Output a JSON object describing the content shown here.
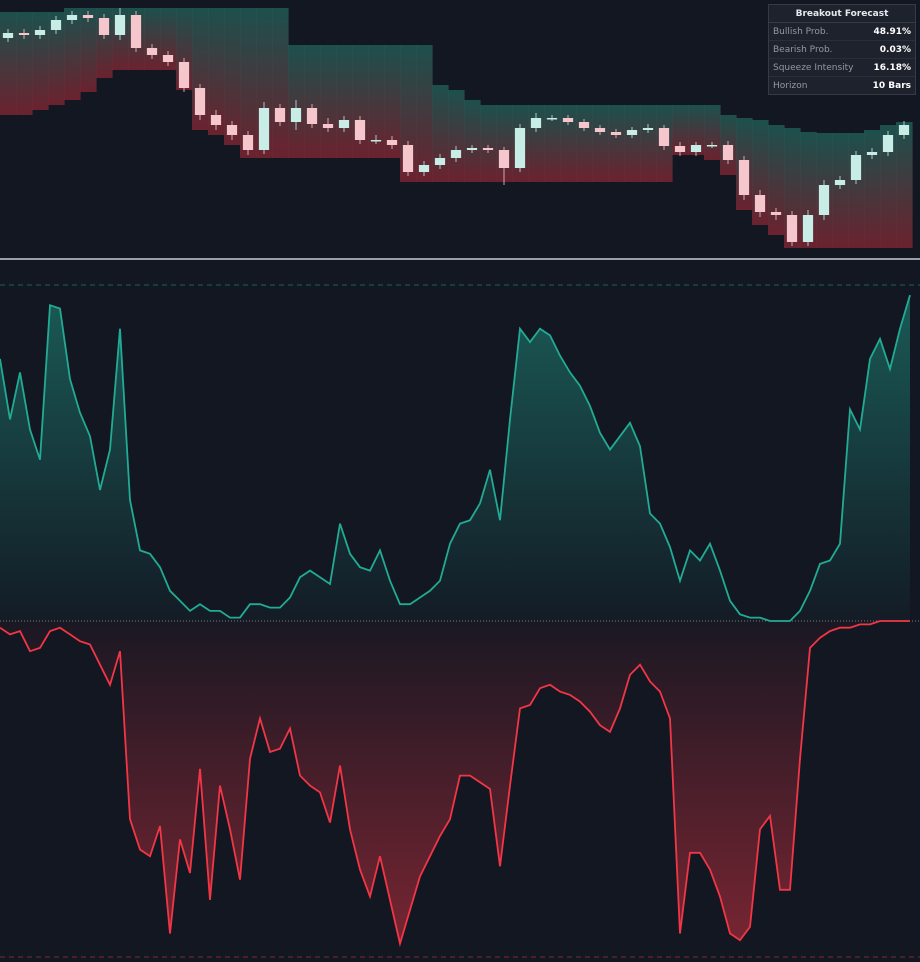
{
  "chart_data": [
    {
      "type": "candlestick",
      "ylim": [
        0,
        260
      ],
      "up_color": "#c8ece6",
      "down_color": "#f5c6cb",
      "band_colors": [
        "#1e5a54",
        "#7a2431"
      ],
      "open": [
        222,
        227,
        225,
        230,
        240,
        245,
        242,
        225,
        245,
        212,
        205,
        198,
        172,
        145,
        135,
        125,
        110,
        152,
        138,
        152,
        136,
        132,
        140,
        120,
        120,
        115,
        88,
        95,
        102,
        110,
        112,
        110,
        92,
        132,
        142,
        142,
        138,
        132,
        128,
        125,
        130,
        132,
        114,
        108,
        115,
        115,
        100,
        65,
        48,
        45,
        18,
        45,
        75,
        80,
        105,
        108,
        125
      ],
      "high": [
        231,
        231,
        234,
        244,
        249,
        249,
        246,
        252,
        249,
        216,
        209,
        202,
        176,
        150,
        139,
        129,
        158,
        156,
        160,
        156,
        142,
        144,
        144,
        125,
        124,
        119,
        99,
        106,
        114,
        115,
        115,
        113,
        136,
        147,
        145,
        145,
        141,
        135,
        131,
        133,
        136,
        135,
        118,
        118,
        118,
        119,
        104,
        70,
        52,
        49,
        50,
        80,
        84,
        109,
        112,
        129,
        139
      ],
      "low": [
        218,
        221,
        221,
        226,
        236,
        238,
        221,
        220,
        208,
        201,
        194,
        168,
        140,
        130,
        120,
        105,
        106,
        134,
        130,
        132,
        128,
        128,
        116,
        116,
        111,
        84,
        84,
        91,
        98,
        107,
        107,
        75,
        88,
        128,
        139,
        135,
        129,
        125,
        122,
        122,
        127,
        110,
        104,
        104,
        112,
        96,
        60,
        43,
        40,
        14,
        14,
        40,
        71,
        76,
        101,
        104,
        121
      ],
      "close": [
        227,
        225,
        230,
        240,
        245,
        242,
        225,
        245,
        212,
        205,
        198,
        172,
        145,
        135,
        125,
        110,
        152,
        138,
        152,
        136,
        132,
        140,
        120,
        120,
        115,
        88,
        95,
        102,
        110,
        112,
        110,
        92,
        132,
        142,
        142,
        138,
        132,
        128,
        125,
        130,
        132,
        114,
        108,
        115,
        115,
        100,
        65,
        48,
        45,
        18,
        45,
        75,
        80,
        105,
        108,
        125,
        135
      ],
      "upper_band": [
        248,
        248,
        248,
        248,
        252,
        252,
        252,
        252,
        252,
        252,
        252,
        252,
        252,
        252,
        252,
        252,
        252,
        252,
        215,
        215,
        215,
        215,
        215,
        215,
        215,
        215,
        215,
        175,
        170,
        160,
        155,
        155,
        155,
        155,
        155,
        155,
        155,
        155,
        155,
        155,
        155,
        155,
        155,
        155,
        155,
        145,
        142,
        140,
        135,
        132,
        128,
        127,
        127,
        127,
        130,
        135,
        138
      ],
      "lower_band": [
        145,
        145,
        150,
        155,
        160,
        168,
        182,
        190,
        190,
        190,
        190,
        170,
        130,
        125,
        115,
        102,
        102,
        102,
        102,
        102,
        102,
        102,
        102,
        102,
        102,
        78,
        78,
        78,
        78,
        78,
        78,
        78,
        78,
        78,
        78,
        78,
        78,
        78,
        78,
        78,
        78,
        78,
        105,
        105,
        100,
        85,
        50,
        35,
        25,
        12,
        12,
        12,
        12,
        12,
        12,
        12,
        12
      ]
    },
    {
      "type": "area",
      "ylim": [
        -1,
        1
      ],
      "series": [
        {
          "color": "#22ab94",
          "values": [
            0.78,
            0.6,
            0.74,
            0.57,
            0.48,
            0.94,
            0.93,
            0.72,
            0.62,
            0.55,
            0.39,
            0.51,
            0.87,
            0.36,
            0.21,
            0.2,
            0.16,
            0.09,
            0.06,
            0.03,
            0.05,
            0.03,
            0.03,
            0.01,
            0.01,
            0.05,
            0.05,
            0.04,
            0.04,
            0.07,
            0.13,
            0.15,
            0.13,
            0.11,
            0.29,
            0.2,
            0.16,
            0.15,
            0.21,
            0.12,
            0.05,
            0.05,
            0.07,
            0.09,
            0.12,
            0.23,
            0.29,
            0.3,
            0.35,
            0.45,
            0.3,
            0.6,
            0.87,
            0.83,
            0.87,
            0.85,
            0.79,
            0.74,
            0.7,
            0.64,
            0.56,
            0.51,
            0.55,
            0.59,
            0.52,
            0.32,
            0.29,
            0.22,
            0.12,
            0.21,
            0.18,
            0.23,
            0.15,
            0.06,
            0.02,
            0.01,
            0.01,
            0,
            0,
            0,
            0.03,
            0.09,
            0.17,
            0.18,
            0.23,
            0.63,
            0.57,
            0.78,
            0.84,
            0.75,
            0.87,
            0.97
          ]
        },
        {
          "color": "#f23645",
          "values": [
            -0.02,
            -0.04,
            -0.03,
            -0.09,
            -0.08,
            -0.03,
            -0.02,
            -0.04,
            -0.06,
            -0.07,
            -0.13,
            -0.19,
            -0.09,
            -0.59,
            -0.68,
            -0.7,
            -0.61,
            -0.93,
            -0.65,
            -0.75,
            -0.44,
            -0.83,
            -0.49,
            -0.62,
            -0.77,
            -0.41,
            -0.29,
            -0.39,
            -0.38,
            -0.32,
            -0.46,
            -0.49,
            -0.51,
            -0.6,
            -0.43,
            -0.62,
            -0.74,
            -0.82,
            -0.7,
            -0.83,
            -0.96,
            -0.86,
            -0.76,
            -0.7,
            -0.64,
            -0.59,
            -0.46,
            -0.46,
            -0.48,
            -0.5,
            -0.73,
            -0.49,
            -0.26,
            -0.25,
            -0.2,
            -0.19,
            -0.21,
            -0.22,
            -0.24,
            -0.27,
            -0.31,
            -0.33,
            -0.26,
            -0.16,
            -0.13,
            -0.18,
            -0.21,
            -0.29,
            -0.93,
            -0.69,
            -0.69,
            -0.74,
            -0.82,
            -0.93,
            -0.95,
            -0.91,
            -0.62,
            -0.58,
            -0.8,
            -0.8,
            -0.41,
            -0.08,
            -0.05,
            -0.03,
            -0.02,
            -0.02,
            -0.01,
            -0.01,
            0,
            0,
            0,
            0
          ]
        }
      ]
    }
  ],
  "table": {
    "title": "Breakout Forecast",
    "rows": [
      [
        "Bullish Prob.",
        "48.91%"
      ],
      [
        "Bearish Prob.",
        "0.03%"
      ],
      [
        "Squeeze Intensity",
        "16.18%"
      ],
      [
        "Horizon",
        "10 Bars"
      ]
    ]
  }
}
